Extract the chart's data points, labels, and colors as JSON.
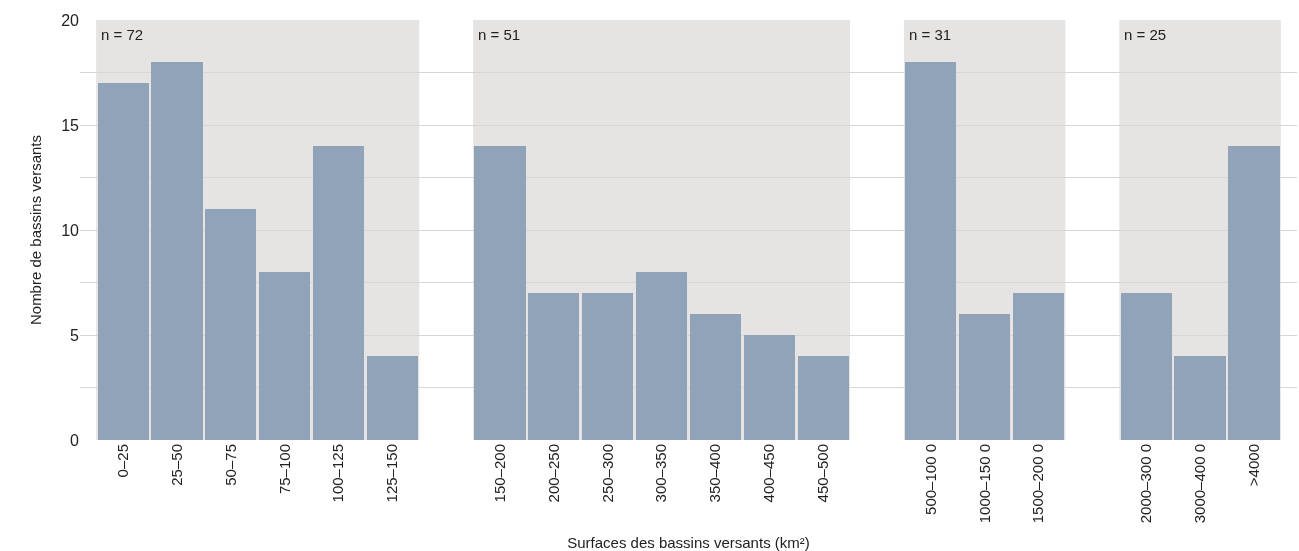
{
  "chart_data": {
    "type": "bar",
    "xlabel": "Surfaces des bassins versants (km²)",
    "ylabel": "Nombre de bassins versants",
    "categories": [
      "0–25",
      "25–50",
      "50–75",
      "75–100",
      "100–125",
      "125–150",
      null,
      "150–200",
      "200–250",
      "250–300",
      "300–350",
      "350–400",
      "400–450",
      "450–500",
      null,
      "500–100 0",
      "1000–150 0",
      "1500–200 0",
      null,
      "2000–300 0",
      "3000–400 0",
      ">4000"
    ],
    "values": [
      17,
      18,
      11,
      8,
      14,
      4,
      null,
      14,
      7,
      7,
      8,
      6,
      5,
      4,
      null,
      18,
      6,
      7,
      null,
      7,
      4,
      14
    ],
    "color": "#91a3b9",
    "ylim": [
      0,
      20
    ],
    "yticks": [
      0,
      {
        "value": 2.5,
        "label": null
      },
      5,
      {
        "value": 7.5,
        "label": null
      },
      10,
      {
        "value": 12.5,
        "label": null
      },
      15,
      {
        "value": 17.5,
        "label": null
      },
      20
    ],
    "grid": "y",
    "bands": [
      {
        "axis": "x",
        "from": "0–25",
        "to": "125–150",
        "label": "n = 72",
        "color": "#e6e4e2"
      },
      {
        "axis": "x",
        "from": "150–200",
        "to": "450–500",
        "label": "n = 51",
        "color": "#e6e4e2"
      },
      {
        "axis": "x",
        "from": "500–100 0",
        "to": "1500–200 0",
        "label": "n = 31",
        "color": "#e6e4e2"
      },
      {
        "axis": "x",
        "from": "2000–300 0",
        "to": ">4000",
        "label": "n = 25",
        "color": "#e6e4e2"
      }
    ]
  }
}
